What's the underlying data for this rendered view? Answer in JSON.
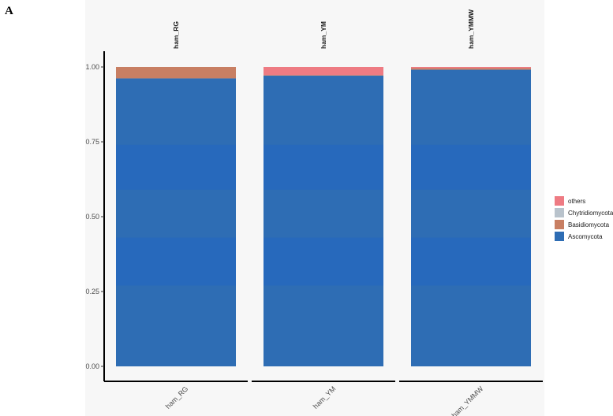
{
  "panel_label": "A",
  "chart_data": {
    "type": "bar",
    "stacked": true,
    "facets": [
      "ham_RG",
      "ham_YM",
      "ham_YMMW"
    ],
    "categories": [
      "ham_RG",
      "ham_YM",
      "ham_YMMW"
    ],
    "series": [
      {
        "name": "Ascomycota",
        "color": "#2E6DB4",
        "values": [
          0.962,
          0.971,
          0.991
        ]
      },
      {
        "name": "Basidiomycota",
        "color": "#C87F63",
        "values": [
          0.038,
          0.002,
          0.005
        ]
      },
      {
        "name": "Chytridiomycota",
        "color": "#B9C3CC",
        "values": [
          0.0,
          0.0,
          0.0
        ]
      },
      {
        "name": "others",
        "color": "#EE7B83",
        "values": [
          0.0,
          0.027,
          0.004
        ]
      }
    ],
    "legend_order": [
      "others",
      "Chytridiomycota",
      "Basidiomycota",
      "Ascomycota"
    ],
    "legend_position": "right",
    "ylim": [
      0,
      1
    ],
    "yticks": [
      "0.00",
      "0.25",
      "0.50",
      "0.75",
      "1.00"
    ],
    "grid": false
  }
}
